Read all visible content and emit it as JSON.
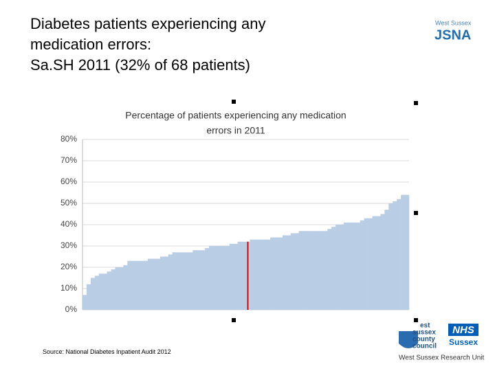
{
  "slide": {
    "title": [
      "Diabetes patients experiencing any",
      "medication errors:",
      "Sa.SH 2011 (32% of 68 patients)"
    ],
    "source": "Source: National Diabetes Inpatient Audit 2012",
    "logos": {
      "jsna_top": "West Sussex",
      "jsna": "JSNA",
      "council": [
        "est",
        "sussex",
        "county",
        "council"
      ],
      "nhs": "NHS",
      "nhs_region": "Sussex",
      "unit": "West Sussex Research Unit"
    }
  },
  "chart_data": {
    "type": "bar",
    "title": [
      "Percentage of patients experiencing any medication",
      "errors in 2011"
    ],
    "categories": [
      null,
      null,
      null,
      null,
      null,
      null,
      null,
      null,
      null,
      null,
      null,
      null,
      null,
      null,
      null,
      null,
      null,
      null,
      null,
      null,
      null,
      null,
      null,
      null,
      null,
      null,
      null,
      null,
      null,
      null,
      null,
      null,
      null,
      null,
      null,
      null,
      null,
      null,
      null,
      null,
      null,
      null,
      null,
      null,
      null,
      null,
      null,
      null,
      null,
      null,
      null,
      null,
      null,
      null,
      null,
      null,
      null,
      null,
      null,
      null,
      null,
      null,
      null,
      null,
      null,
      null,
      null,
      null,
      null,
      null,
      null,
      null,
      null,
      null,
      null,
      null,
      null,
      null,
      null,
      null
    ],
    "values": [
      7,
      12,
      15,
      16,
      17,
      17,
      18,
      19,
      20,
      20,
      21,
      23,
      23,
      23,
      23,
      23,
      24,
      24,
      24,
      25,
      25,
      26,
      27,
      27,
      27,
      27,
      27,
      28,
      28,
      28,
      29,
      30,
      30,
      30,
      30,
      30,
      31,
      31,
      32,
      32,
      32,
      33,
      33,
      33,
      33,
      33,
      34,
      34,
      34,
      35,
      35,
      36,
      36,
      37,
      37,
      37,
      37,
      37,
      37,
      37,
      38,
      39,
      40,
      40,
      41,
      41,
      41,
      41,
      42,
      43,
      43,
      44,
      44,
      45,
      47,
      50,
      51,
      52,
      54,
      54
    ],
    "color": "#b9cde5",
    "highlight": {
      "index": 40,
      "color": "#e00000"
    },
    "ylim": [
      0,
      80
    ],
    "yticks": [
      {
        "value": 0,
        "label": "0%"
      },
      {
        "value": 10,
        "label": "10%"
      },
      {
        "value": 20,
        "label": "20%"
      },
      {
        "value": 30,
        "label": "30%"
      },
      {
        "value": 40,
        "label": "40%"
      },
      {
        "value": 50,
        "label": "50%"
      },
      {
        "value": 60,
        "label": "60%"
      },
      {
        "value": 70,
        "label": "70%"
      },
      {
        "value": 80,
        "label": "80%"
      }
    ],
    "grid": true
  }
}
